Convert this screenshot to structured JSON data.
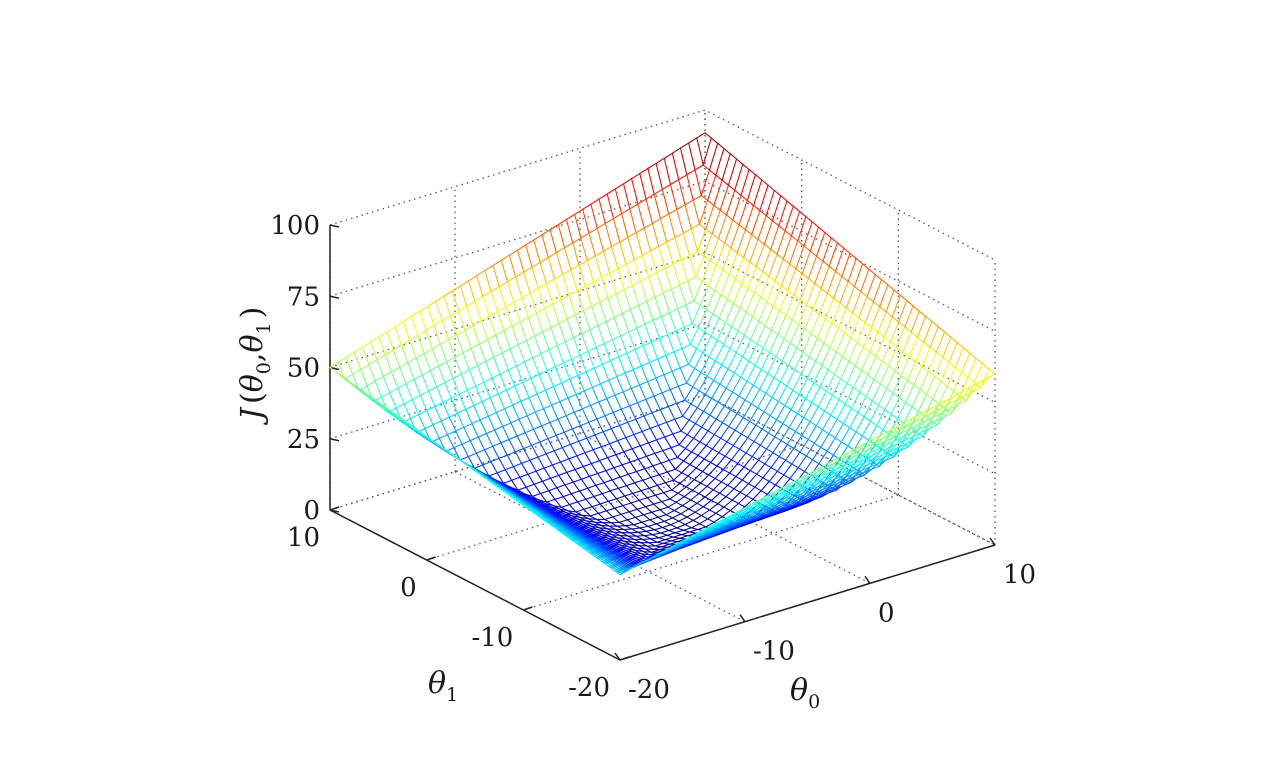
{
  "chart_data": {
    "type": "surface",
    "title": "",
    "xlabel": "θ0",
    "ylabel": "θ1",
    "zlabel": "J(θ0,θ1)",
    "x_ticks": [
      "-20",
      "-10",
      "0",
      "10"
    ],
    "y_ticks": [
      "-20",
      "-10",
      "0",
      "10"
    ],
    "z_ticks": [
      "0",
      "25",
      "50",
      "75",
      "100"
    ],
    "xlim": [
      -20,
      10
    ],
    "ylim": [
      -20,
      10
    ],
    "zlim": [
      0,
      100
    ],
    "grid": true,
    "colormap": "jet",
    "surface": {
      "function": "bowl",
      "corner_values": [
        {
          "theta0": -20,
          "theta1": -20,
          "J": 30
        },
        {
          "theta0": -20,
          "theta1": 10,
          "J": 50
        },
        {
          "theta0": 10,
          "theta1": 10,
          "J": 92
        },
        {
          "theta0": 10,
          "theta1": -20,
          "J": 60
        }
      ],
      "minimum": {
        "theta0": -5,
        "theta1": -5,
        "J": 0
      }
    }
  },
  "labels": {
    "xlabel_main": "θ",
    "xlabel_sub": "0",
    "ylabel_main": "θ",
    "ylabel_sub": "1",
    "zlabel_main": "J",
    "zlabel_open": "(",
    "zlabel_t0": "θ",
    "zlabel_sub0": "0",
    "zlabel_comma": ",",
    "zlabel_t1": "θ",
    "zlabel_sub1": "1",
    "zlabel_close": ")"
  }
}
